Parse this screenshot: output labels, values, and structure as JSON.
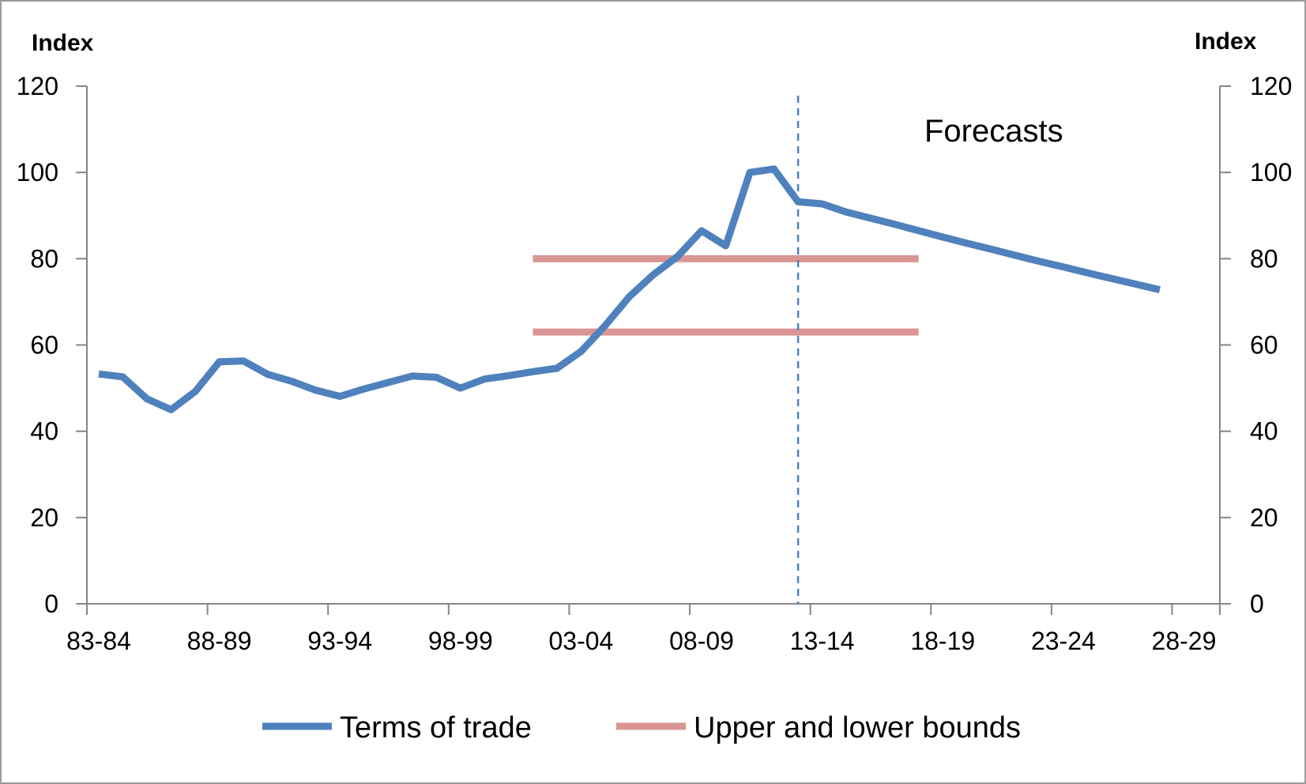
{
  "chart_data": {
    "type": "line",
    "title": "",
    "ylabel_left": "Index",
    "ylabel_right": "Index",
    "ylim": [
      0,
      120
    ],
    "y_ticks": [
      "0",
      "20",
      "40",
      "60",
      "80",
      "100",
      "120"
    ],
    "x_tick_labels": [
      "83-84",
      "88-89",
      "93-94",
      "98-99",
      "03-04",
      "08-09",
      "13-14",
      "18-19",
      "23-24",
      "28-29"
    ],
    "x": [
      "83-84",
      "84-85",
      "85-86",
      "86-87",
      "87-88",
      "88-89",
      "89-90",
      "90-91",
      "91-92",
      "92-93",
      "93-94",
      "94-95",
      "95-96",
      "96-97",
      "97-98",
      "98-99",
      "99-00",
      "00-01",
      "01-02",
      "02-03",
      "03-04",
      "04-05",
      "05-06",
      "06-07",
      "07-08",
      "08-09",
      "09-10",
      "10-11",
      "11-12",
      "12-13",
      "13-14",
      "14-15",
      "15-16",
      "16-17",
      "17-18",
      "18-19",
      "19-20",
      "20-21",
      "21-22",
      "22-23",
      "23-24",
      "24-25",
      "25-26",
      "26-27",
      "27-28",
      "28-29",
      "29-30"
    ],
    "series": [
      {
        "name": "Terms of trade",
        "color": "#4f81bd",
        "values": [
          53.3,
          52.6,
          47.5,
          45.0,
          49.2,
          56.1,
          56.3,
          53.2,
          51.6,
          49.5,
          48.1,
          49.8,
          51.3,
          52.8,
          52.5,
          50.0,
          52.1,
          52.9,
          53.8,
          54.6,
          58.5,
          64.5,
          71.2,
          76.3,
          80.5,
          86.5,
          83.0,
          100.0,
          100.8,
          93.2,
          92.7,
          90.8,
          89.4,
          88.0,
          86.5,
          85.0,
          83.6,
          82.2,
          80.8,
          79.4,
          78.1,
          76.7,
          75.4,
          74.1,
          72.8,
          null,
          null
        ]
      },
      {
        "name": "Upper and lower bounds",
        "color": "#d99694",
        "upper": 80.0,
        "lower": 63.0,
        "x_start": "01-02",
        "x_end": "17-18"
      }
    ],
    "forecast_divider_x": "12-13",
    "annotations": [
      "Forecasts"
    ],
    "grid": false,
    "legend_position": "bottom"
  }
}
